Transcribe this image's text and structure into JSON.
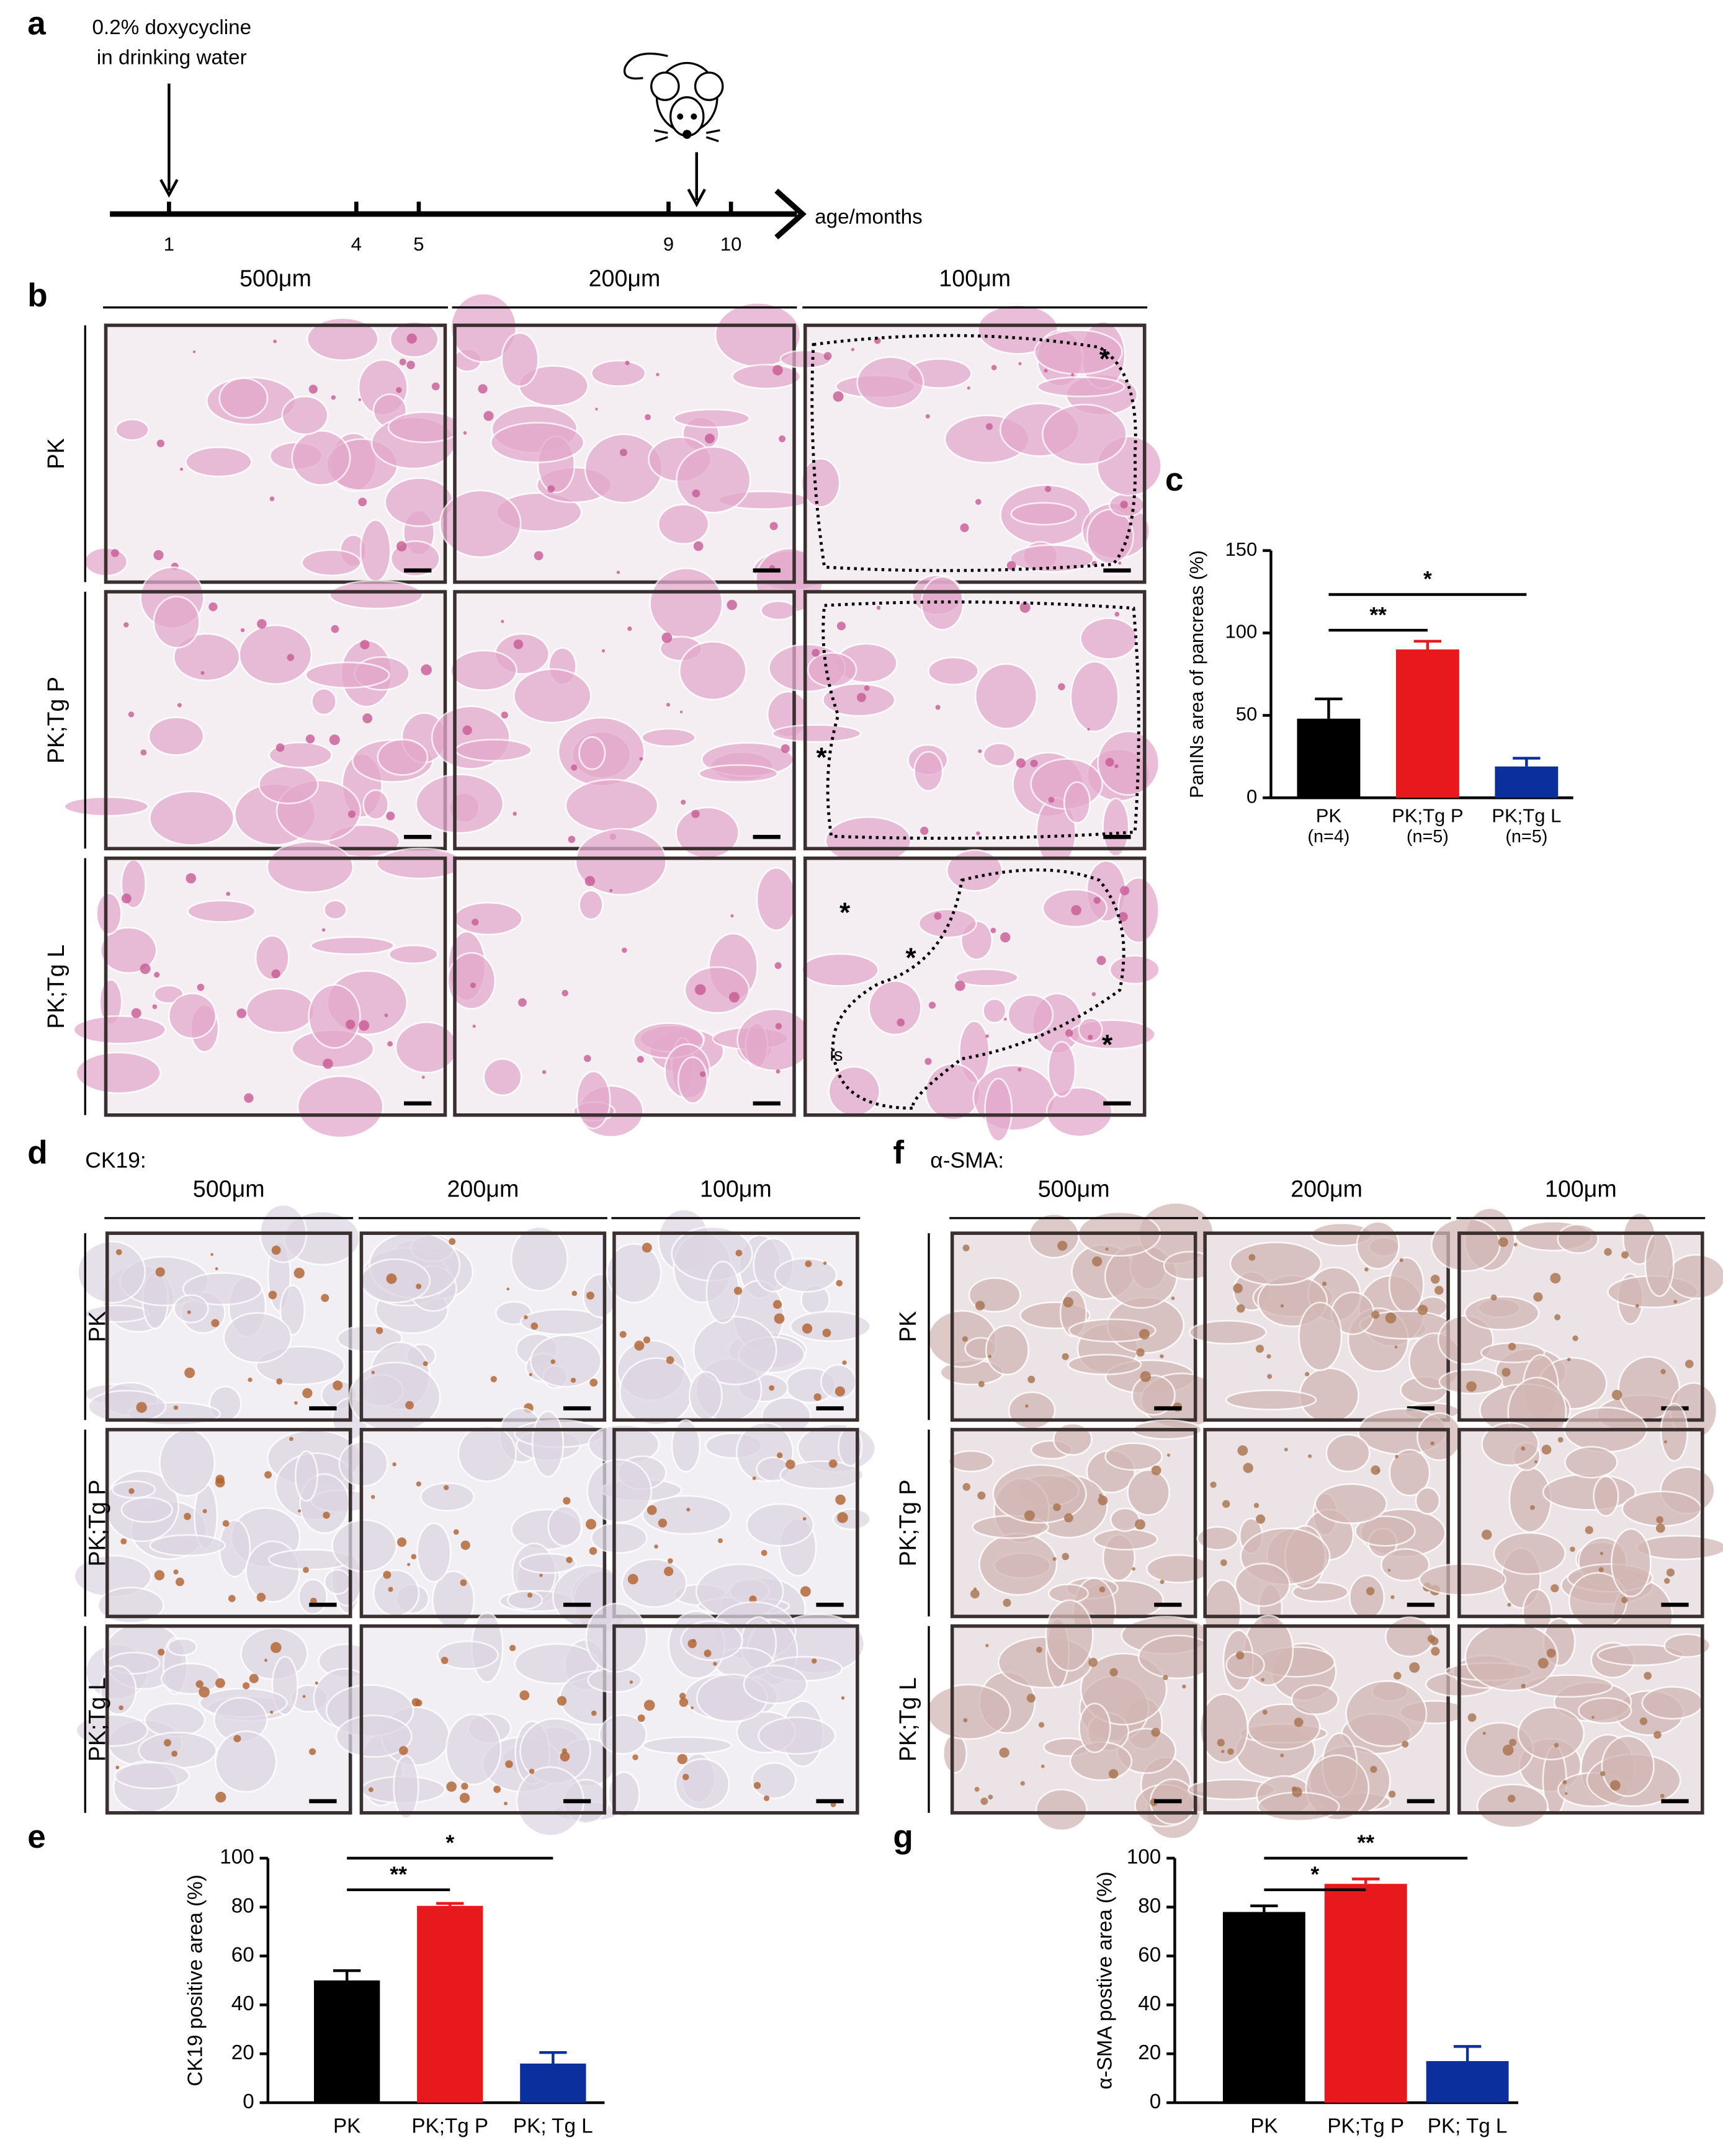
{
  "panel_labels": [
    "a",
    "b",
    "c",
    "d",
    "e",
    "f",
    "g"
  ],
  "timeline": {
    "annotation": [
      "0.2% doxycycline",
      "in drinking water"
    ],
    "ticks": [
      1,
      4,
      5,
      9,
      10
    ],
    "axis_label": "age/months"
  },
  "he_panel": {
    "columns": [
      "500μm",
      "200μm",
      "100μm"
    ],
    "rows": [
      "PK",
      "PK;Tg P",
      "PK;Tg L"
    ],
    "annotations": [
      "*",
      "*",
      "*",
      "*",
      "*",
      "is"
    ]
  },
  "ck19_panel": {
    "stain": "CK19:",
    "columns": [
      "500μm",
      "200μm",
      "100μm"
    ],
    "rows": [
      "PK",
      "PK;Tg P",
      "PK;Tg L"
    ]
  },
  "sma_panel": {
    "stain": "α-SMA:",
    "columns": [
      "500μm",
      "200μm",
      "100μm"
    ],
    "rows": [
      "PK",
      "PK;Tg P",
      "PK;Tg L"
    ]
  },
  "chart_data": [
    {
      "type": "bar",
      "ylabel": "PanINs area of pancreas (%)",
      "categories": [
        "PK",
        "PK;Tg P",
        "PK;Tg L"
      ],
      "category_notes": [
        "(n=4)",
        "(n=5)",
        "(n=5)"
      ],
      "values": [
        48,
        90,
        19
      ],
      "errors": [
        12,
        5,
        5
      ],
      "colors": [
        "#000000",
        "#e8191c",
        "#0b2f9c"
      ],
      "ylim": [
        0,
        150
      ],
      "yticks": [
        0,
        50,
        100,
        150
      ],
      "significance": [
        {
          "label": "**",
          "groups": [
            "PK",
            "PK;Tg P"
          ]
        },
        {
          "label": "*",
          "groups": [
            "PK",
            "PK;Tg L"
          ]
        }
      ]
    },
    {
      "type": "bar",
      "ylabel": "CK19 positive area (%)",
      "categories": [
        "PK",
        "PK;Tg P",
        "PK; Tg L"
      ],
      "values": [
        50,
        80.5,
        16
      ],
      "errors": [
        4,
        1,
        4.5
      ],
      "colors": [
        "#000000",
        "#e8191c",
        "#0b2f9c"
      ],
      "ylim": [
        0,
        100
      ],
      "yticks": [
        0,
        20,
        40,
        60,
        80,
        100
      ],
      "significance": [
        {
          "label": "**",
          "groups": [
            "PK",
            "PK;Tg P"
          ]
        },
        {
          "label": "*",
          "groups": [
            "PK",
            "PK; Tg L"
          ]
        }
      ]
    },
    {
      "type": "bar",
      "ylabel": "α-SMA postive area (%)",
      "categories": [
        "PK",
        "PK;Tg P",
        "PK; Tg L"
      ],
      "values": [
        78,
        89.5,
        17
      ],
      "errors": [
        2.5,
        2,
        6
      ],
      "colors": [
        "#000000",
        "#e8191c",
        "#0b2f9c"
      ],
      "ylim": [
        0,
        100
      ],
      "yticks": [
        0,
        20,
        40,
        60,
        80,
        100
      ],
      "significance": [
        {
          "label": "*",
          "groups": [
            "PK",
            "PK;Tg P"
          ]
        },
        {
          "label": "**",
          "groups": [
            "PK",
            "PK; Tg L"
          ]
        }
      ]
    }
  ]
}
